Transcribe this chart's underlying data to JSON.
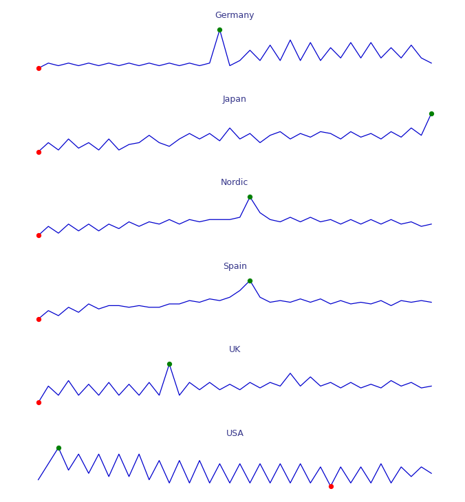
{
  "regions": [
    "Germany",
    "Japan",
    "Nordic",
    "Spain",
    "UK",
    "USA"
  ],
  "line_color": "#0000cd",
  "min_color": "red",
  "max_color": "green",
  "title_fontsize": 9,
  "title_color": "#333388",
  "background_color": "white",
  "series": {
    "Germany": [
      3,
      5,
      4,
      5,
      4,
      5,
      4,
      5,
      4,
      5,
      4,
      5,
      4,
      5,
      4,
      5,
      4,
      5,
      18,
      4,
      6,
      10,
      6,
      12,
      6,
      14,
      6,
      13,
      6,
      11,
      7,
      13,
      7,
      13,
      7,
      11,
      7,
      12,
      7,
      5
    ],
    "Japan": [
      3,
      8,
      4,
      10,
      5,
      8,
      4,
      10,
      4,
      7,
      8,
      12,
      8,
      6,
      10,
      13,
      10,
      13,
      9,
      16,
      10,
      13,
      8,
      12,
      14,
      10,
      13,
      11,
      14,
      13,
      10,
      14,
      11,
      13,
      10,
      14,
      11,
      16,
      12,
      24
    ],
    "Nordic": [
      3,
      7,
      4,
      8,
      5,
      8,
      5,
      8,
      6,
      9,
      7,
      9,
      8,
      10,
      8,
      10,
      9,
      10,
      10,
      10,
      11,
      20,
      13,
      10,
      9,
      11,
      9,
      11,
      9,
      10,
      8,
      10,
      8,
      10,
      8,
      10,
      8,
      9,
      7,
      8
    ],
    "Spain": [
      3,
      8,
      5,
      10,
      7,
      12,
      9,
      11,
      11,
      10,
      11,
      10,
      10,
      12,
      12,
      14,
      13,
      15,
      14,
      16,
      20,
      26,
      16,
      13,
      14,
      13,
      15,
      13,
      15,
      12,
      14,
      12,
      13,
      12,
      14,
      11,
      14,
      13,
      14,
      13
    ],
    "UK": [
      3,
      12,
      7,
      15,
      7,
      13,
      7,
      14,
      7,
      13,
      7,
      14,
      7,
      24,
      7,
      14,
      10,
      14,
      10,
      13,
      10,
      14,
      11,
      14,
      12,
      19,
      12,
      17,
      12,
      14,
      11,
      14,
      11,
      13,
      11,
      15,
      12,
      14,
      11,
      12
    ],
    "USA": [
      5,
      10,
      15,
      8,
      13,
      7,
      13,
      6,
      13,
      6,
      13,
      5,
      11,
      4,
      11,
      4,
      11,
      4,
      10,
      4,
      10,
      4,
      10,
      4,
      10,
      4,
      10,
      4,
      9,
      3,
      9,
      4,
      9,
      4,
      10,
      4,
      9,
      6,
      9,
      7
    ]
  }
}
